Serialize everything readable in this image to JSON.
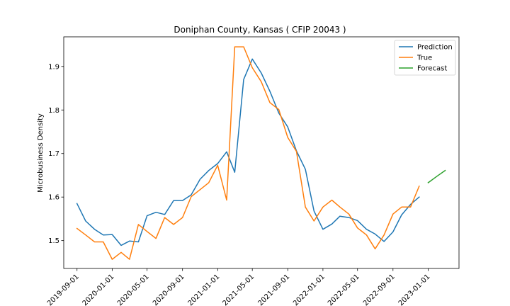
{
  "chart_data": {
    "type": "line",
    "title": "Doniphan County, Kansas ( CFIP 20043 )",
    "xlabel": "",
    "ylabel": "Microbusiness Density",
    "xlim": [
      "2019-07-17",
      "2023-04-18"
    ],
    "ylim": [
      1.436,
      1.968
    ],
    "x_ticks": [
      "2019-09-01",
      "2020-01-01",
      "2020-05-01",
      "2020-09-01",
      "2021-01-01",
      "2021-05-01",
      "2021-09-01",
      "2022-01-01",
      "2022-05-01",
      "2022-09-01",
      "2023-01-01"
    ],
    "y_ticks": [
      1.5,
      1.6,
      1.7,
      1.8,
      1.9
    ],
    "y_tick_labels": [
      "1.5",
      "1.6",
      "1.7",
      "1.8",
      "1.9"
    ],
    "grid": false,
    "legend_position": "top-right",
    "series": [
      {
        "name": "Prediction",
        "color": "#1f77b4",
        "x": [
          "2019-09-01",
          "2019-10-01",
          "2019-11-01",
          "2019-12-01",
          "2020-01-01",
          "2020-02-01",
          "2020-03-01",
          "2020-04-01",
          "2020-05-01",
          "2020-06-01",
          "2020-07-01",
          "2020-08-01",
          "2020-09-01",
          "2020-10-01",
          "2020-11-01",
          "2020-12-01",
          "2021-01-01",
          "2021-02-01",
          "2021-03-01",
          "2021-04-01",
          "2021-05-01",
          "2021-06-01",
          "2021-07-01",
          "2021-08-01",
          "2021-09-01",
          "2021-10-01",
          "2021-11-01",
          "2021-12-01",
          "2022-01-01",
          "2022-02-01",
          "2022-03-01",
          "2022-04-01",
          "2022-05-01",
          "2022-06-01",
          "2022-07-01",
          "2022-08-01",
          "2022-09-01",
          "2022-10-01",
          "2022-11-01",
          "2022-12-01"
        ],
        "y": [
          1.585,
          1.545,
          1.526,
          1.513,
          1.514,
          1.489,
          1.499,
          1.497,
          1.557,
          1.565,
          1.56,
          1.592,
          1.592,
          1.605,
          1.641,
          1.661,
          1.677,
          1.704,
          1.657,
          1.87,
          1.917,
          1.885,
          1.843,
          1.793,
          1.761,
          1.706,
          1.664,
          1.568,
          1.526,
          1.538,
          1.556,
          1.553,
          1.546,
          1.526,
          1.515,
          1.498,
          1.52,
          1.559,
          1.583,
          1.6
        ]
      },
      {
        "name": "True",
        "color": "#ff7f0e",
        "x": [
          "2019-09-01",
          "2019-10-01",
          "2019-11-01",
          "2019-12-01",
          "2020-01-01",
          "2020-02-01",
          "2020-03-01",
          "2020-04-01",
          "2020-05-01",
          "2020-06-01",
          "2020-07-01",
          "2020-08-01",
          "2020-09-01",
          "2020-10-01",
          "2020-11-01",
          "2020-12-01",
          "2021-01-01",
          "2021-02-01",
          "2021-03-01",
          "2021-04-01",
          "2021-05-01",
          "2021-06-01",
          "2021-07-01",
          "2021-08-01",
          "2021-09-01",
          "2021-10-01",
          "2021-11-01",
          "2021-12-01",
          "2022-01-01",
          "2022-02-01",
          "2022-03-01",
          "2022-04-01",
          "2022-05-01",
          "2022-06-01",
          "2022-07-01",
          "2022-08-01",
          "2022-09-01",
          "2022-10-01",
          "2022-11-01",
          "2022-12-01"
        ],
        "y": [
          1.528,
          1.513,
          1.497,
          1.497,
          1.457,
          1.473,
          1.457,
          1.537,
          1.521,
          1.505,
          1.553,
          1.537,
          1.553,
          1.601,
          1.617,
          1.633,
          1.673,
          1.593,
          1.945,
          1.945,
          1.897,
          1.865,
          1.817,
          1.801,
          1.737,
          1.705,
          1.577,
          1.545,
          1.577,
          1.593,
          1.577,
          1.561,
          1.529,
          1.513,
          1.481,
          1.513,
          1.561,
          1.577,
          1.577,
          1.625
        ]
      },
      {
        "name": "Forecast",
        "color": "#2ca02c",
        "x": [
          "2023-01-01",
          "2023-02-01",
          "2023-03-01"
        ],
        "y": [
          1.633,
          1.648,
          1.661
        ]
      }
    ]
  }
}
